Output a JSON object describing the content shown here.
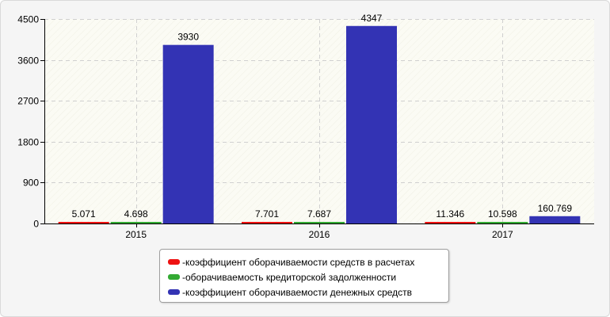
{
  "chart_data": {
    "type": "bar",
    "categories": [
      "2015",
      "2016",
      "2017"
    ],
    "series": [
      {
        "name": "коэффициент оборачиваемости средств в расчетах",
        "color": "#ee1111",
        "values": [
          5.071,
          7.701,
          11.346
        ],
        "labels": [
          "5.071",
          "7.701",
          "11.346"
        ]
      },
      {
        "name": "оборачиваемость кредиторской задолженности",
        "color": "#33aa33",
        "values": [
          4.698,
          7.687,
          10.598
        ],
        "labels": [
          "4.698",
          "7.687",
          "10.598"
        ]
      },
      {
        "name": "коэффициент оборачиваемости денежных средств",
        "color": "#3333b4",
        "values": [
          3930,
          4347,
          160.769
        ],
        "labels": [
          "3930",
          "4347",
          "160.769"
        ]
      }
    ],
    "yticks": [
      0,
      900,
      1800,
      2700,
      3600,
      4500
    ],
    "ytick_labels": [
      "0",
      "900",
      "1800",
      "2700",
      "3600",
      "4500"
    ],
    "ylim": [
      0,
      4500
    ],
    "grid": true,
    "legend_position": "bottom-center",
    "legend_prefix": "- "
  }
}
